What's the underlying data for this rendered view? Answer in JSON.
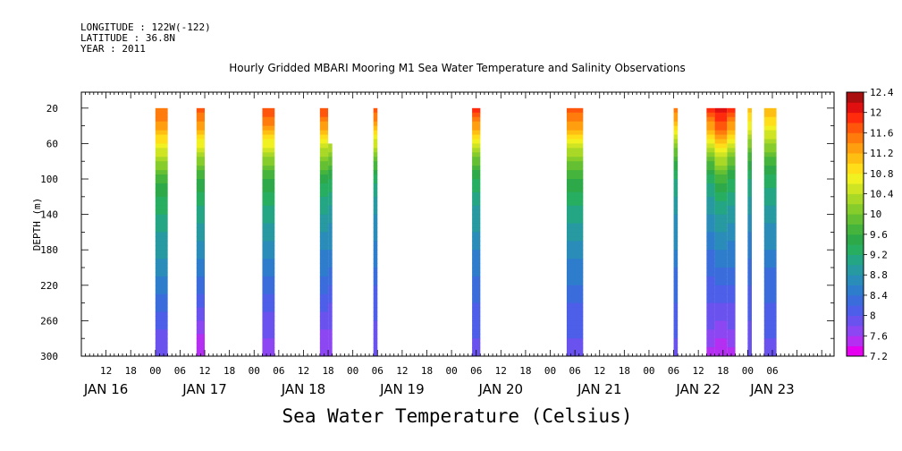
{
  "header": {
    "longitude": "LONGITUDE : 122W(-122)",
    "latitude": "LATITUDE : 36.8N",
    "year": "YEAR : 2011"
  },
  "chart_data": {
    "type": "heatmap",
    "title": "Hourly Gridded MBARI Mooring M1 Sea Water Temperature and Salinity Observations",
    "xlabel": "Sea Water Temperature (Celsius)",
    "ylabel": "DEPTH (m)",
    "x_unit": "hours since JAN 16 00",
    "xlim": [
      6,
      189
    ],
    "ylim": [
      300,
      2
    ],
    "y_ticks": [
      20,
      60,
      100,
      140,
      180,
      220,
      260,
      300
    ],
    "x_tick_labels": [
      {
        "hour": 12,
        "label": "12"
      },
      {
        "hour": 18,
        "label": "18"
      },
      {
        "hour": 24,
        "label": "00"
      },
      {
        "hour": 30,
        "label": "06"
      },
      {
        "hour": 36,
        "label": "12"
      },
      {
        "hour": 42,
        "label": "18"
      },
      {
        "hour": 48,
        "label": "00"
      },
      {
        "hour": 54,
        "label": "06"
      },
      {
        "hour": 60,
        "label": "12"
      },
      {
        "hour": 66,
        "label": "18"
      },
      {
        "hour": 72,
        "label": "00"
      },
      {
        "hour": 78,
        "label": "06"
      },
      {
        "hour": 84,
        "label": "12"
      },
      {
        "hour": 90,
        "label": "18"
      },
      {
        "hour": 96,
        "label": "00"
      },
      {
        "hour": 102,
        "label": "06"
      },
      {
        "hour": 108,
        "label": "12"
      },
      {
        "hour": 114,
        "label": "18"
      },
      {
        "hour": 120,
        "label": "00"
      },
      {
        "hour": 126,
        "label": "06"
      },
      {
        "hour": 132,
        "label": "12"
      },
      {
        "hour": 138,
        "label": "18"
      },
      {
        "hour": 144,
        "label": "00"
      },
      {
        "hour": 150,
        "label": "06"
      },
      {
        "hour": 156,
        "label": "12"
      },
      {
        "hour": 162,
        "label": "18"
      },
      {
        "hour": 168,
        "label": "00"
      },
      {
        "hour": 174,
        "label": "06"
      }
    ],
    "day_labels": [
      {
        "hour": 12,
        "label": "JAN 16"
      },
      {
        "hour": 36,
        "label": "JAN 17"
      },
      {
        "hour": 60,
        "label": "JAN 18"
      },
      {
        "hour": 84,
        "label": "JAN 19"
      },
      {
        "hour": 108,
        "label": "JAN 20"
      },
      {
        "hour": 132,
        "label": "JAN 21"
      },
      {
        "hour": 156,
        "label": "JAN 22"
      },
      {
        "hour": 174,
        "label": "JAN 23"
      }
    ],
    "depth_levels": [
      20,
      40,
      60,
      80,
      100,
      120,
      140,
      160,
      180,
      200,
      220,
      240,
      260,
      280,
      300
    ],
    "profiles": [
      {
        "x_start": 24.0,
        "x_end": 27.0,
        "depth_top": 20,
        "temps": [
          11.6,
          11.3,
          10.8,
          10.2,
          9.7,
          9.4,
          9.2,
          9.0,
          8.9,
          8.7,
          8.5,
          8.3,
          8.1,
          7.9,
          7.8
        ]
      },
      {
        "x_start": 34.0,
        "x_end": 36.0,
        "depth_top": 20,
        "temps": [
          11.7,
          11.3,
          10.7,
          10.1,
          9.6,
          9.3,
          9.1,
          8.9,
          8.7,
          8.5,
          8.3,
          8.1,
          7.8,
          7.5,
          7.4
        ]
      },
      {
        "x_start": 50.0,
        "x_end": 53.0,
        "depth_top": 20,
        "temps": [
          11.8,
          11.4,
          10.7,
          10.1,
          9.6,
          9.3,
          9.1,
          8.9,
          8.7,
          8.5,
          8.3,
          8.1,
          7.9,
          7.8,
          7.7
        ]
      },
      {
        "x_start": 64.0,
        "x_end": 66.0,
        "depth_top": 20,
        "temps": [
          11.8,
          11.3,
          10.6,
          10.0,
          9.5,
          9.2,
          9.0,
          8.8,
          8.6,
          8.5,
          8.3,
          8.1,
          7.9,
          7.7,
          7.6
        ]
      },
      {
        "x_start": 66.0,
        "x_end": 67.0,
        "depth_top": 60,
        "temps": [
          11.0,
          11.0,
          10.4,
          9.9,
          9.4,
          9.1,
          8.9,
          8.7,
          8.6,
          8.4,
          8.2,
          8.0,
          7.9,
          7.7,
          7.6
        ]
      },
      {
        "x_start": 77.0,
        "x_end": 78.0,
        "depth_top": 20,
        "temps": [
          11.8,
          11.2,
          10.5,
          9.8,
          9.3,
          9.0,
          8.8,
          8.7,
          8.5,
          8.4,
          8.2,
          8.1,
          8.0,
          7.9,
          7.8
        ]
      },
      {
        "x_start": 101.0,
        "x_end": 103.0,
        "depth_top": 20,
        "temps": [
          11.9,
          11.3,
          10.6,
          9.9,
          9.4,
          9.1,
          8.9,
          8.8,
          8.6,
          8.5,
          8.3,
          8.2,
          8.1,
          8.0,
          7.9
        ]
      },
      {
        "x_start": 124.0,
        "x_end": 128.0,
        "depth_top": 20,
        "temps": [
          11.7,
          11.3,
          10.6,
          10.0,
          9.6,
          9.3,
          9.1,
          8.9,
          8.7,
          8.5,
          8.4,
          8.2,
          8.1,
          8.0,
          7.9
        ]
      },
      {
        "x_start": 150.0,
        "x_end": 151.0,
        "depth_top": 20,
        "temps": [
          11.6,
          11.0,
          10.2,
          9.6,
          9.2,
          9.0,
          8.8,
          8.7,
          8.6,
          8.4,
          8.3,
          8.2,
          8.1,
          8.0,
          7.9
        ]
      },
      {
        "x_start": 158.0,
        "x_end": 160.0,
        "depth_top": 20,
        "temps": [
          11.9,
          11.3,
          10.5,
          9.8,
          9.3,
          9.0,
          8.8,
          8.6,
          8.4,
          8.3,
          8.1,
          8.0,
          7.9,
          7.7,
          7.5
        ]
      },
      {
        "x_start": 160.0,
        "x_end": 163.0,
        "depth_top": 20,
        "temps": [
          12.1,
          11.7,
          11.0,
          10.3,
          9.7,
          9.3,
          9.0,
          8.8,
          8.6,
          8.4,
          8.2,
          8.0,
          7.8,
          7.6,
          7.4
        ]
      },
      {
        "x_start": 163.0,
        "x_end": 165.0,
        "depth_top": 20,
        "temps": [
          11.9,
          11.3,
          10.5,
          9.9,
          9.4,
          9.1,
          8.9,
          8.7,
          8.5,
          8.4,
          8.2,
          8.0,
          7.9,
          7.7,
          7.5
        ]
      },
      {
        "x_start": 168.0,
        "x_end": 169.0,
        "depth_top": 20,
        "temps": [
          11.1,
          10.7,
          10.1,
          9.6,
          9.2,
          9.0,
          8.8,
          8.6,
          8.5,
          8.3,
          8.2,
          8.1,
          8.0,
          7.9,
          7.8
        ]
      },
      {
        "x_start": 172.0,
        "x_end": 175.0,
        "depth_top": 20,
        "temps": [
          11.2,
          10.8,
          10.2,
          9.7,
          9.3,
          9.1,
          8.9,
          8.7,
          8.6,
          8.4,
          8.3,
          8.2,
          8.1,
          8.0,
          7.9
        ]
      }
    ],
    "colorbar": {
      "levels": [
        7.2,
        7.4,
        7.6,
        7.8,
        8.0,
        8.2,
        8.4,
        8.6,
        8.8,
        9.0,
        9.2,
        9.4,
        9.6,
        9.8,
        10.0,
        10.2,
        10.4,
        10.6,
        10.8,
        11.0,
        11.2,
        11.4,
        11.6,
        11.8,
        12.0,
        12.2,
        12.4
      ],
      "tick_labels": [
        "12.4",
        "12",
        "11.6",
        "11.2",
        "10.8",
        "10.4",
        "10",
        "9.6",
        "9.2",
        "8.8",
        "8.4",
        "8",
        "7.6",
        "7.2"
      ],
      "colors": [
        "#e600f0",
        "#b42ff2",
        "#8c46f2",
        "#6a52ee",
        "#4d5ee8",
        "#3a6cdc",
        "#2e7ccc",
        "#2a8cb8",
        "#2799a0",
        "#24a684",
        "#27ae60",
        "#2ea94a",
        "#45b43c",
        "#64c032",
        "#86cc2a",
        "#aad826",
        "#cfe523",
        "#f1f020",
        "#ffdd18",
        "#ffbf12",
        "#ff9e0e",
        "#ff7c0c",
        "#ff560c",
        "#ff2b0c",
        "#e01010",
        "#aa0e0e"
      ]
    }
  }
}
